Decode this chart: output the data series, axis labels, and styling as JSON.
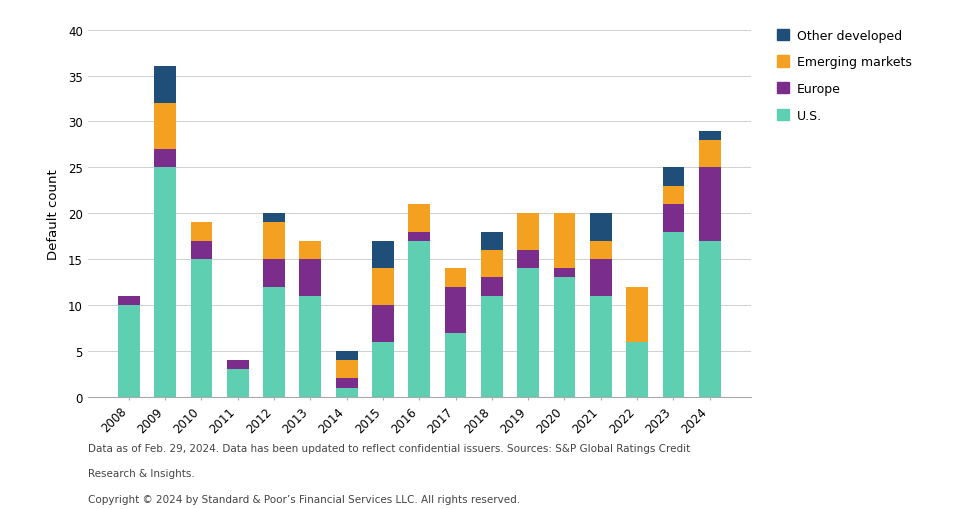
{
  "years": [
    "2008",
    "2009",
    "2010",
    "2011",
    "2012",
    "2013",
    "2014",
    "2015",
    "2016",
    "2017",
    "2018",
    "2019",
    "2020",
    "2021",
    "2022",
    "2023",
    "2024"
  ],
  "us": [
    10,
    25,
    15,
    3,
    12,
    11,
    1,
    6,
    17,
    7,
    11,
    14,
    13,
    11,
    6,
    18,
    17
  ],
  "europe": [
    1,
    2,
    2,
    1,
    3,
    4,
    1,
    4,
    1,
    5,
    2,
    2,
    1,
    4,
    0,
    3,
    8
  ],
  "emerging_markets": [
    0,
    5,
    2,
    0,
    4,
    2,
    2,
    4,
    3,
    2,
    3,
    4,
    6,
    2,
    6,
    2,
    3
  ],
  "other_developed": [
    0,
    4,
    0,
    0,
    1,
    0,
    1,
    3,
    0,
    0,
    2,
    0,
    0,
    3,
    0,
    2,
    1
  ],
  "color_us": "#5ecfb1",
  "color_europe": "#7b2d8b",
  "color_em": "#f4a020",
  "color_od": "#1f4e79",
  "ylabel": "Default count",
  "ylim": [
    0,
    40
  ],
  "yticks": [
    0,
    5,
    10,
    15,
    20,
    25,
    30,
    35,
    40
  ],
  "footnote_line1": "Data as of Feb. 29, 2024. Data has been updated to reflect confidential issuers. Sources: S&P Global Ratings Credit",
  "footnote_line2": "Research & Insights.",
  "footnote_line3": "Copyright © 2024 by Standard & Poor’s Financial Services LLC. All rights reserved.",
  "background_color": "#ffffff",
  "grid_color": "#d0d0d0"
}
